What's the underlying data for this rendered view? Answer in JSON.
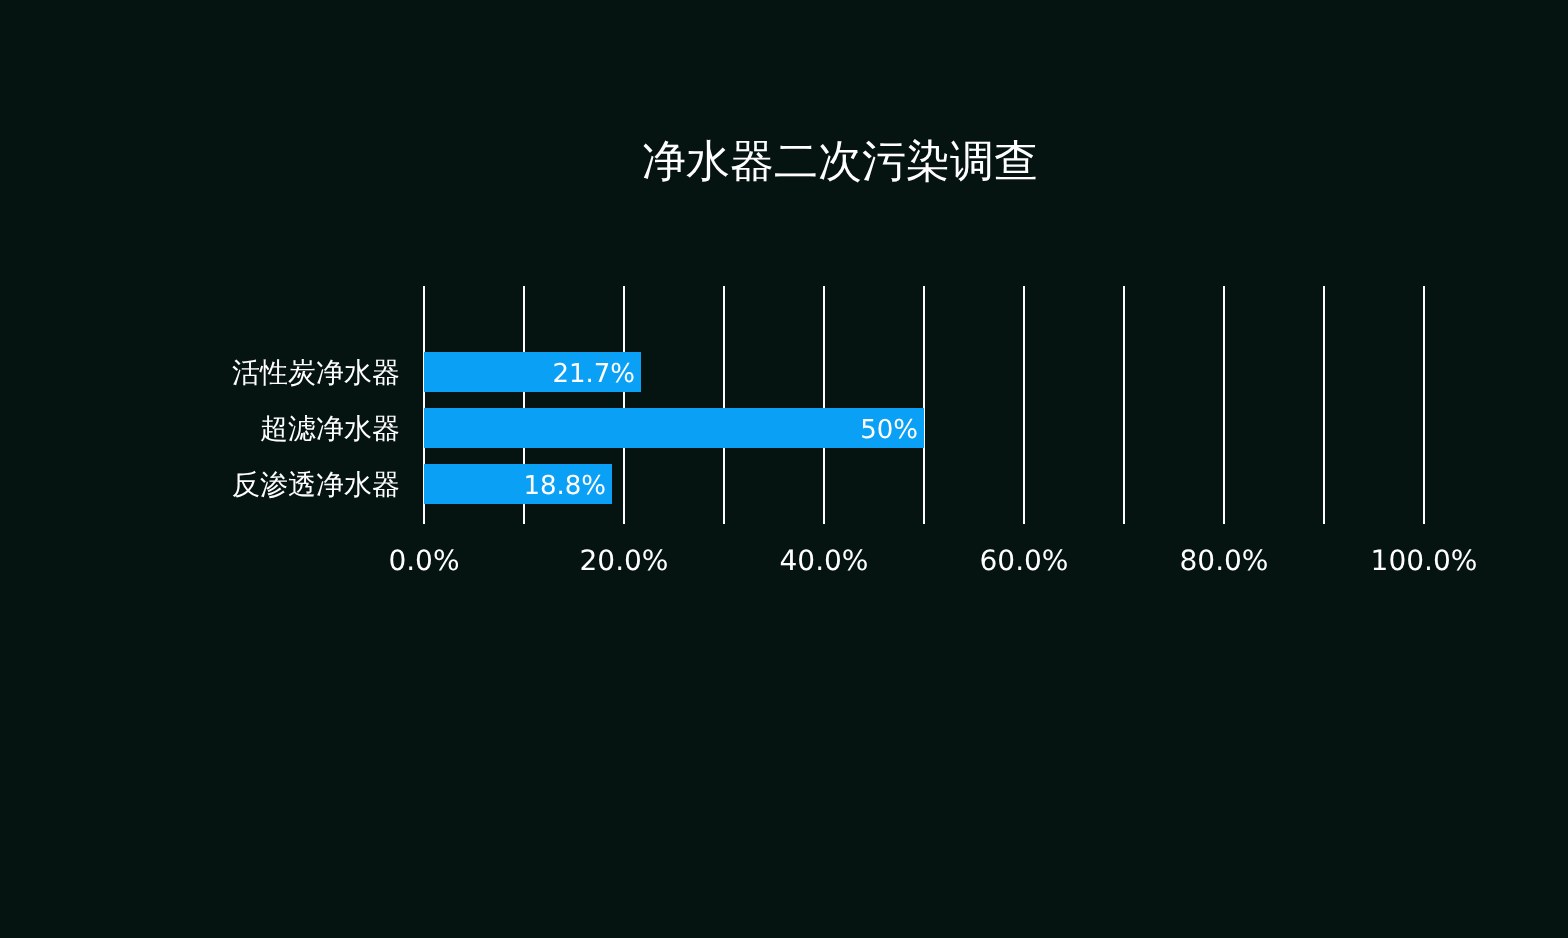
{
  "chart_data": {
    "type": "bar",
    "orientation": "horizontal",
    "title": "净水器二次污染调查",
    "categories": [
      "活性炭净水器",
      "超滤净水器",
      "反渗透净水器"
    ],
    "values": [
      21.7,
      50,
      18.8
    ],
    "value_labels": [
      "21.7%",
      "50%",
      "18.8%"
    ],
    "color": "#0aa0f5",
    "xlim": [
      0,
      100
    ],
    "xticks": [
      {
        "value": 0,
        "label": "0.0%"
      },
      {
        "value": 10,
        "label": null
      },
      {
        "value": 20,
        "label": "20.0%"
      },
      {
        "value": 30,
        "label": null
      },
      {
        "value": 40,
        "label": "40.0%"
      },
      {
        "value": 50,
        "label": null
      },
      {
        "value": 60,
        "label": "60.0%"
      },
      {
        "value": 70,
        "label": null
      },
      {
        "value": 80,
        "label": "80.0%"
      },
      {
        "value": 90,
        "label": null
      },
      {
        "value": 100,
        "label": "100.0%"
      }
    ],
    "grid": "x"
  }
}
